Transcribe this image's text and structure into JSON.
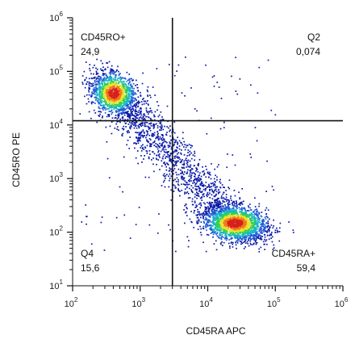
{
  "chart_data": {
    "type": "scatter",
    "title": "",
    "xlabel": "CD45RA APC",
    "ylabel": "CD45RO PE",
    "x_scale": "log",
    "y_scale": "log",
    "xlim": [
      100,
      1000000
    ],
    "ylim": [
      10,
      1000000
    ],
    "x_ticks": [
      {
        "value": 100,
        "base": "10",
        "exp": "2"
      },
      {
        "value": 1000,
        "base": "10",
        "exp": "3"
      },
      {
        "value": 10000,
        "base": "10",
        "exp": "4"
      },
      {
        "value": 100000,
        "base": "10",
        "exp": "5"
      },
      {
        "value": 1000000,
        "base": "10",
        "exp": "6"
      }
    ],
    "y_ticks": [
      {
        "value": 10,
        "base": "10",
        "exp": "1"
      },
      {
        "value": 100,
        "base": "10",
        "exp": "2"
      },
      {
        "value": 1000,
        "base": "10",
        "exp": "3"
      },
      {
        "value": 10000,
        "base": "10",
        "exp": "4"
      },
      {
        "value": 100000,
        "base": "10",
        "exp": "5"
      },
      {
        "value": 1000000,
        "base": "10",
        "exp": "6"
      }
    ],
    "gates": {
      "x": 3000,
      "y": 12000
    },
    "quadrants": [
      {
        "position": "top-left",
        "name": "CD45RO+",
        "value": "24,9"
      },
      {
        "position": "top-right",
        "name": "Q2",
        "value": "0,074"
      },
      {
        "position": "bottom-left",
        "name": "Q4",
        "value": "15,6"
      },
      {
        "position": "bottom-right",
        "name": "CD45RA+",
        "value": "59,4"
      }
    ],
    "populations": [
      {
        "x_center": 400,
        "y_center": 40000,
        "density": "high"
      },
      {
        "x_center": 25000,
        "y_center": 150,
        "density": "high"
      }
    ],
    "density_colors": [
      "#0a1aa8",
      "#1e5bd6",
      "#18b4c9",
      "#2fcf5a",
      "#e8e22a",
      "#f07a1a",
      "#d8201a"
    ]
  }
}
